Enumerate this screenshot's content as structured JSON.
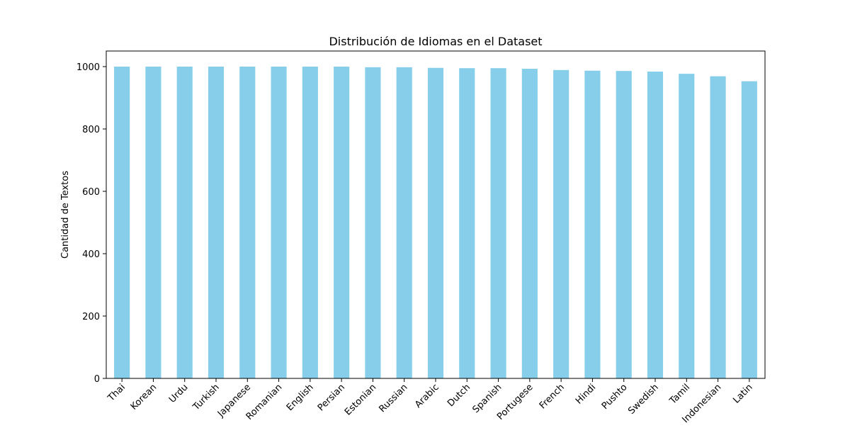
{
  "chart_data": {
    "type": "bar",
    "title": "Distribución de Idiomas en el Dataset",
    "xlabel": "",
    "ylabel": "Cantidad de Textos",
    "categories": [
      "Thai",
      "Korean",
      "Urdu",
      "Turkish",
      "Japanese",
      "Romanian",
      "English",
      "Persian",
      "Estonian",
      "Russian",
      "Arabic",
      "Dutch",
      "Spanish",
      "Portugese",
      "French",
      "Hindi",
      "Pushto",
      "Swedish",
      "Tamil",
      "Indonesian",
      "Latin"
    ],
    "values": [
      1000,
      1000,
      1000,
      1000,
      1000,
      1000,
      1000,
      1000,
      998,
      998,
      996,
      995,
      995,
      993,
      989,
      987,
      986,
      984,
      977,
      969,
      953
    ],
    "ylim": [
      0,
      1050
    ],
    "yticks": [
      0,
      200,
      400,
      600,
      800,
      1000
    ],
    "bar_color": "#87CEEB",
    "grid": false,
    "legend": "none"
  }
}
